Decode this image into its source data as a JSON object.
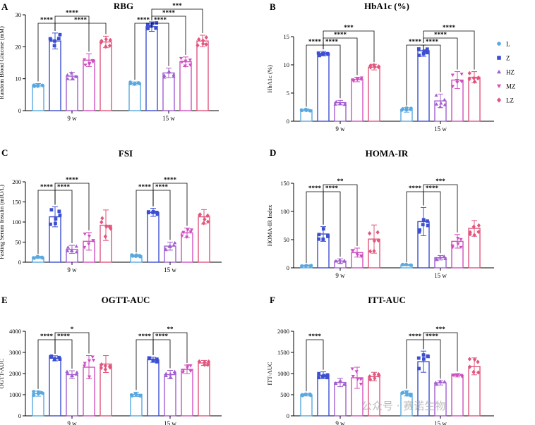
{
  "colors": {
    "L": "#59a8e0",
    "Z": "#3c4fd1",
    "HZ": "#a35fcf",
    "MZ": "#cf4fbf",
    "LZ": "#e2567e"
  },
  "markers": {
    "L": "circle",
    "Z": "square",
    "HZ": "triangle-up",
    "MZ": "triangle-down",
    "LZ": "diamond"
  },
  "legend": {
    "items": [
      "L",
      "Z",
      "HZ",
      "MZ",
      "LZ"
    ]
  },
  "watermark": "公众号 · 赛诺生物",
  "chart_data": [
    {
      "panel": "A",
      "type": "bar",
      "title": "RBG",
      "ylabel": "Random Blood Glucose (mM)",
      "ylim": [
        0,
        30
      ],
      "yticks": [
        0,
        10,
        20,
        30
      ],
      "categories": [
        "9 w",
        "15 w"
      ],
      "series": [
        {
          "name": "L",
          "values": [
            8.0,
            8.5
          ],
          "err": [
            0.5,
            0.5
          ]
        },
        {
          "name": "Z",
          "values": [
            21.8,
            26.3
          ],
          "err": [
            2.5,
            1.5
          ]
        },
        {
          "name": "HZ",
          "values": [
            10.8,
            11.8
          ],
          "err": [
            1.2,
            1.5
          ]
        },
        {
          "name": "MZ",
          "values": [
            15.8,
            15.3
          ],
          "err": [
            2.0,
            1.5
          ]
        },
        {
          "name": "LZ",
          "values": [
            21.5,
            21.8
          ],
          "err": [
            1.8,
            1.8
          ]
        }
      ],
      "sig": [
        [
          [
            "****",
            0,
            1,
            0
          ],
          [
            "****",
            1,
            4,
            0
          ],
          [
            "****",
            1,
            3,
            1
          ]
        ],
        [
          [
            "****",
            0,
            1,
            0
          ],
          [
            "***",
            1,
            4,
            2
          ],
          [
            "****",
            1,
            3,
            1
          ],
          [
            "****",
            1,
            2,
            0
          ]
        ]
      ]
    },
    {
      "panel": "B",
      "type": "bar",
      "title": "HbA1c (%)",
      "ylabel": "HbA1c (%)",
      "ylim": [
        0,
        15
      ],
      "yticks": [
        0,
        5,
        10,
        15
      ],
      "categories": [
        "9 w",
        "15 w"
      ],
      "series": [
        {
          "name": "L",
          "values": [
            2.0,
            2.0
          ],
          "err": [
            0.2,
            0.4
          ]
        },
        {
          "name": "Z",
          "values": [
            12.0,
            12.5
          ],
          "err": [
            0.4,
            1.0
          ]
        },
        {
          "name": "HZ",
          "values": [
            3.3,
            3.6
          ],
          "err": [
            0.4,
            1.2
          ]
        },
        {
          "name": "MZ",
          "values": [
            7.4,
            7.3
          ],
          "err": [
            0.4,
            1.5
          ]
        },
        {
          "name": "LZ",
          "values": [
            9.6,
            7.8
          ],
          "err": [
            0.5,
            1.0
          ]
        }
      ],
      "sig": [
        [
          [
            "****",
            0,
            1,
            0
          ],
          [
            "***",
            1,
            4,
            2
          ],
          [
            "****",
            1,
            3,
            1
          ],
          [
            "****",
            1,
            2,
            0
          ]
        ],
        [
          [
            "****",
            0,
            1,
            0
          ],
          [
            "****",
            1,
            4,
            2
          ],
          [
            "****",
            1,
            3,
            1
          ],
          [
            "****",
            1,
            2,
            0
          ]
        ]
      ]
    },
    {
      "panel": "C",
      "type": "bar",
      "title": "FSI",
      "ylabel": "Fasting Serum Insulin (mIU/L)",
      "ylim": [
        0,
        200
      ],
      "yticks": [
        0,
        50,
        100,
        150,
        200
      ],
      "categories": [
        "9 w",
        "15 w"
      ],
      "series": [
        {
          "name": "L",
          "values": [
            12,
            16
          ],
          "err": [
            3,
            3
          ]
        },
        {
          "name": "Z",
          "values": [
            113,
            124
          ],
          "err": [
            25,
            10
          ]
        },
        {
          "name": "HZ",
          "values": [
            32,
            40
          ],
          "err": [
            10,
            10
          ]
        },
        {
          "name": "MZ",
          "values": [
            52,
            73
          ],
          "err": [
            22,
            12
          ]
        },
        {
          "name": "LZ",
          "values": [
            92,
            113
          ],
          "err": [
            38,
            18
          ]
        }
      ],
      "sig": [
        [
          [
            "****",
            0,
            1,
            0
          ],
          [
            "****",
            1,
            3,
            1
          ],
          [
            "****",
            1,
            2,
            0
          ]
        ],
        [
          [
            "****",
            0,
            1,
            0
          ],
          [
            "****",
            1,
            3,
            1
          ],
          [
            "****",
            1,
            2,
            0
          ]
        ]
      ]
    },
    {
      "panel": "D",
      "type": "bar",
      "title": "HOMA-IR",
      "ylabel": "HOMA-IR Index",
      "ylim": [
        0,
        150
      ],
      "yticks": [
        0,
        50,
        100,
        150
      ],
      "categories": [
        "9 w",
        "15 w"
      ],
      "series": [
        {
          "name": "L",
          "values": [
            4,
            5
          ],
          "err": [
            1,
            1
          ]
        },
        {
          "name": "Z",
          "values": [
            60,
            82
          ],
          "err": [
            13,
            25
          ]
        },
        {
          "name": "HZ",
          "values": [
            12,
            18
          ],
          "err": [
            4,
            4
          ]
        },
        {
          "name": "MZ",
          "values": [
            27,
            47
          ],
          "err": [
            8,
            12
          ]
        },
        {
          "name": "LZ",
          "values": [
            51,
            70
          ],
          "err": [
            25,
            14
          ]
        }
      ],
      "sig": [
        [
          [
            "****",
            0,
            1,
            0
          ],
          [
            "**",
            1,
            3,
            1
          ],
          [
            "****",
            1,
            2,
            0
          ]
        ],
        [
          [
            "****",
            0,
            1,
            0
          ],
          [
            "***",
            1,
            3,
            1
          ],
          [
            "****",
            1,
            2,
            0
          ]
        ]
      ]
    },
    {
      "panel": "E",
      "type": "bar",
      "title": "OGTT-AUC",
      "ylabel": "OGTT-AUC",
      "ylim": [
        0,
        4000
      ],
      "yticks": [
        0,
        1000,
        2000,
        3000,
        4000
      ],
      "categories": [
        "9 w",
        "15 w"
      ],
      "series": [
        {
          "name": "L",
          "values": [
            1050,
            1020
          ],
          "err": [
            120,
            100
          ]
        },
        {
          "name": "Z",
          "values": [
            2720,
            2650
          ],
          "err": [
            120,
            120
          ]
        },
        {
          "name": "HZ",
          "values": [
            1950,
            1950
          ],
          "err": [
            180,
            200
          ]
        },
        {
          "name": "MZ",
          "values": [
            2300,
            2200
          ],
          "err": [
            550,
            200
          ]
        },
        {
          "name": "LZ",
          "values": [
            2450,
            2500
          ],
          "err": [
            400,
            120
          ]
        }
      ],
      "sig": [
        [
          [
            "****",
            0,
            1,
            0
          ],
          [
            "*",
            1,
            3,
            1
          ],
          [
            "****",
            1,
            2,
            0
          ]
        ],
        [
          [
            "****",
            0,
            1,
            0
          ],
          [
            "**",
            1,
            3,
            1
          ],
          [
            "****",
            1,
            2,
            0
          ]
        ]
      ]
    },
    {
      "panel": "F",
      "type": "bar",
      "title": "ITT-AUC",
      "ylabel": "ITT-AUC",
      "ylim": [
        0,
        2000
      ],
      "yticks": [
        0,
        500,
        1000,
        1500,
        2000
      ],
      "categories": [
        "9 w",
        "15 w"
      ],
      "series": [
        {
          "name": "L",
          "values": [
            500,
            530
          ],
          "err": [
            30,
            60
          ]
        },
        {
          "name": "Z",
          "values": [
            960,
            1280
          ],
          "err": [
            80,
            250
          ]
        },
        {
          "name": "HZ",
          "values": [
            790,
            780
          ],
          "err": [
            100,
            50
          ]
        },
        {
          "name": "MZ",
          "values": [
            900,
            960
          ],
          "err": [
            250,
            40
          ]
        },
        {
          "name": "LZ",
          "values": [
            930,
            1170
          ],
          "err": [
            100,
            200
          ]
        }
      ],
      "sig": [
        [
          [
            "****",
            0,
            1,
            0
          ]
        ],
        [
          [
            "****",
            0,
            1,
            0
          ],
          [
            "***",
            1,
            3,
            1
          ],
          [
            "****",
            1,
            2,
            0
          ]
        ]
      ]
    }
  ]
}
